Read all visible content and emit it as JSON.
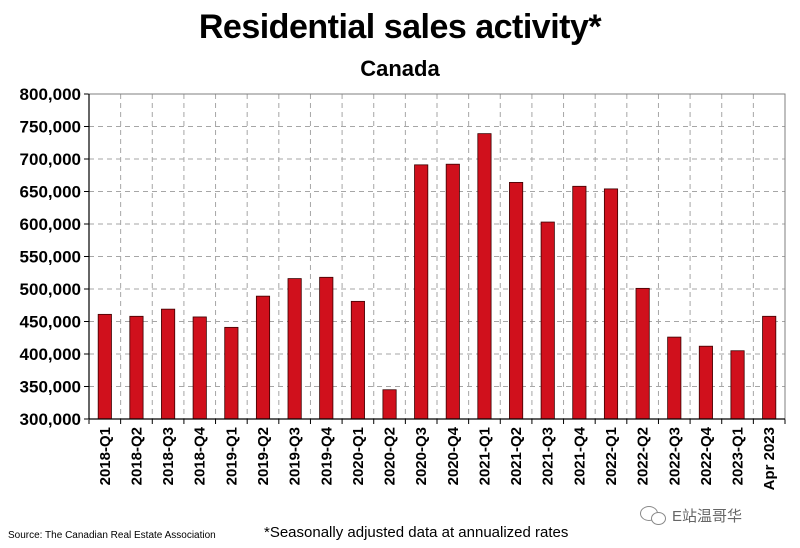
{
  "chart_data": {
    "type": "bar",
    "title": "Residential sales activity*",
    "subtitle": "Canada",
    "categories": [
      "2018-Q1",
      "2018-Q2",
      "2018-Q3",
      "2018-Q4",
      "2019-Q1",
      "2019-Q2",
      "2019-Q3",
      "2019-Q4",
      "2020-Q1",
      "2020-Q2",
      "2020-Q3",
      "2020-Q4",
      "2021-Q1",
      "2021-Q2",
      "2021-Q3",
      "2021-Q4",
      "2022-Q1",
      "2022-Q2",
      "2022-Q3",
      "2022-Q4",
      "2023-Q1",
      "Apr 2023"
    ],
    "values": [
      461000,
      458000,
      469000,
      457000,
      441000,
      489000,
      516000,
      518000,
      481000,
      345000,
      691000,
      692000,
      739000,
      664000,
      603000,
      658000,
      654000,
      501000,
      426000,
      412000,
      405000,
      458000
    ],
    "ylim": [
      300000,
      800000
    ],
    "yticks": [
      300000,
      350000,
      400000,
      450000,
      500000,
      550000,
      600000,
      650000,
      700000,
      750000,
      800000
    ],
    "ytick_labels": [
      "300,000",
      "350,000",
      "400,000",
      "450,000",
      "500,000",
      "550,000",
      "600,000",
      "650,000",
      "700,000",
      "750,000",
      "800,000"
    ],
    "grid": true,
    "bar_color": "#d0101c",
    "xlabel": "",
    "ylabel": ""
  },
  "footer": {
    "source": "Source: The Canadian Real Estate Association",
    "footnote": "*Seasonally adjusted data at annualized rates",
    "watermark": "E站温哥华"
  }
}
